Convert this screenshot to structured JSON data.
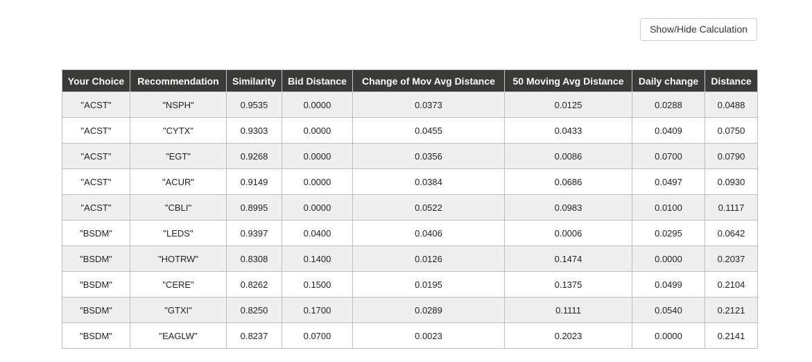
{
  "toolbar": {
    "toggle_label": "Show/Hide Calculation"
  },
  "table": {
    "columns": [
      "Your Choice",
      "Recommendation",
      "Similarity",
      "Bid Distance",
      "Change of Mov Avg Distance",
      "50 Moving Avg Distance",
      "Daily change",
      "Distance"
    ],
    "rows": [
      [
        "\"ACST\"",
        "\"NSPH\"",
        "0.9535",
        "0.0000",
        "0.0373",
        "0.0125",
        "0.0288",
        "0.0488"
      ],
      [
        "\"ACST\"",
        "\"CYTX\"",
        "0.9303",
        "0.0000",
        "0.0455",
        "0.0433",
        "0.0409",
        "0.0750"
      ],
      [
        "\"ACST\"",
        "\"EGT\"",
        "0.9268",
        "0.0000",
        "0.0356",
        "0.0086",
        "0.0700",
        "0.0790"
      ],
      [
        "\"ACST\"",
        "\"ACUR\"",
        "0.9149",
        "0.0000",
        "0.0384",
        "0.0686",
        "0.0497",
        "0.0930"
      ],
      [
        "\"ACST\"",
        "\"CBLI\"",
        "0.8995",
        "0.0000",
        "0.0522",
        "0.0983",
        "0.0100",
        "0.1117"
      ],
      [
        "\"BSDM\"",
        "\"LEDS\"",
        "0.9397",
        "0.0400",
        "0.0406",
        "0.0006",
        "0.0295",
        "0.0642"
      ],
      [
        "\"BSDM\"",
        "\"HOTRW\"",
        "0.8308",
        "0.1400",
        "0.0126",
        "0.1474",
        "0.0000",
        "0.2037"
      ],
      [
        "\"BSDM\"",
        "\"CERE\"",
        "0.8262",
        "0.1500",
        "0.0195",
        "0.1375",
        "0.0499",
        "0.2104"
      ],
      [
        "\"BSDM\"",
        "\"GTXI\"",
        "0.8250",
        "0.1700",
        "0.0289",
        "0.1111",
        "0.0540",
        "0.2121"
      ],
      [
        "\"BSDM\"",
        "\"EAGLW\"",
        "0.8237",
        "0.0700",
        "0.0023",
        "0.2023",
        "0.0000",
        "0.2141"
      ]
    ]
  },
  "colors": {
    "header_bg": "#3b3a36",
    "header_text": "#ffffff",
    "row_odd_bg": "#efefef",
    "row_even_bg": "#ffffff",
    "border": "#bdbdbd"
  }
}
